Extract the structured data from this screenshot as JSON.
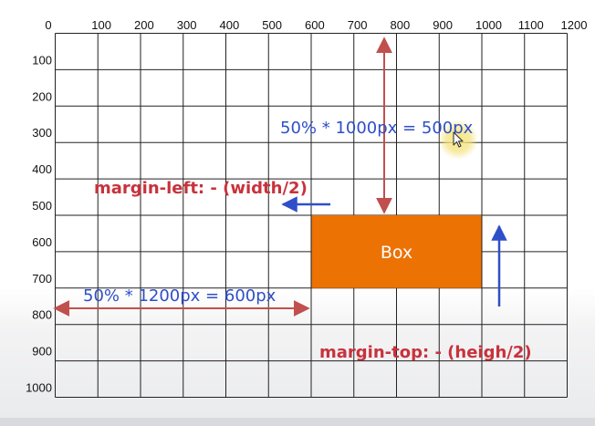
{
  "colors": {
    "box_fill": "#ec7204",
    "arrow_red": "#c0504d",
    "arrow_blue": "#2f4fc8",
    "text_red": "#c8323c",
    "text_blue": "#2f4fc8",
    "grid_line": "#222222",
    "cursor_highlight": "#f4e27a"
  },
  "axes": {
    "x_range": [
      0,
      1200
    ],
    "y_range": [
      0,
      1000
    ],
    "x_ticks": [
      "0",
      "100",
      "200",
      "300",
      "400",
      "500",
      "600",
      "700",
      "800",
      "900",
      "1000",
      "1100",
      "1200"
    ],
    "y_ticks": [
      "100",
      "200",
      "300",
      "400",
      "500",
      "600",
      "700",
      "800",
      "900",
      "1000"
    ]
  },
  "box": {
    "label": "Box",
    "x_start": 600,
    "x_end": 1000,
    "y_start": 500,
    "y_end": 700
  },
  "annotations": {
    "vertical_formula": "50% * 1000px = 500px",
    "horizontal_formula": "50% * 1200px = 600px",
    "margin_left": "margin-left: - (width/2)",
    "margin_top": "margin-top: - (heigh/2)"
  },
  "icons": {
    "cursor": "mouse-pointer-icon"
  }
}
